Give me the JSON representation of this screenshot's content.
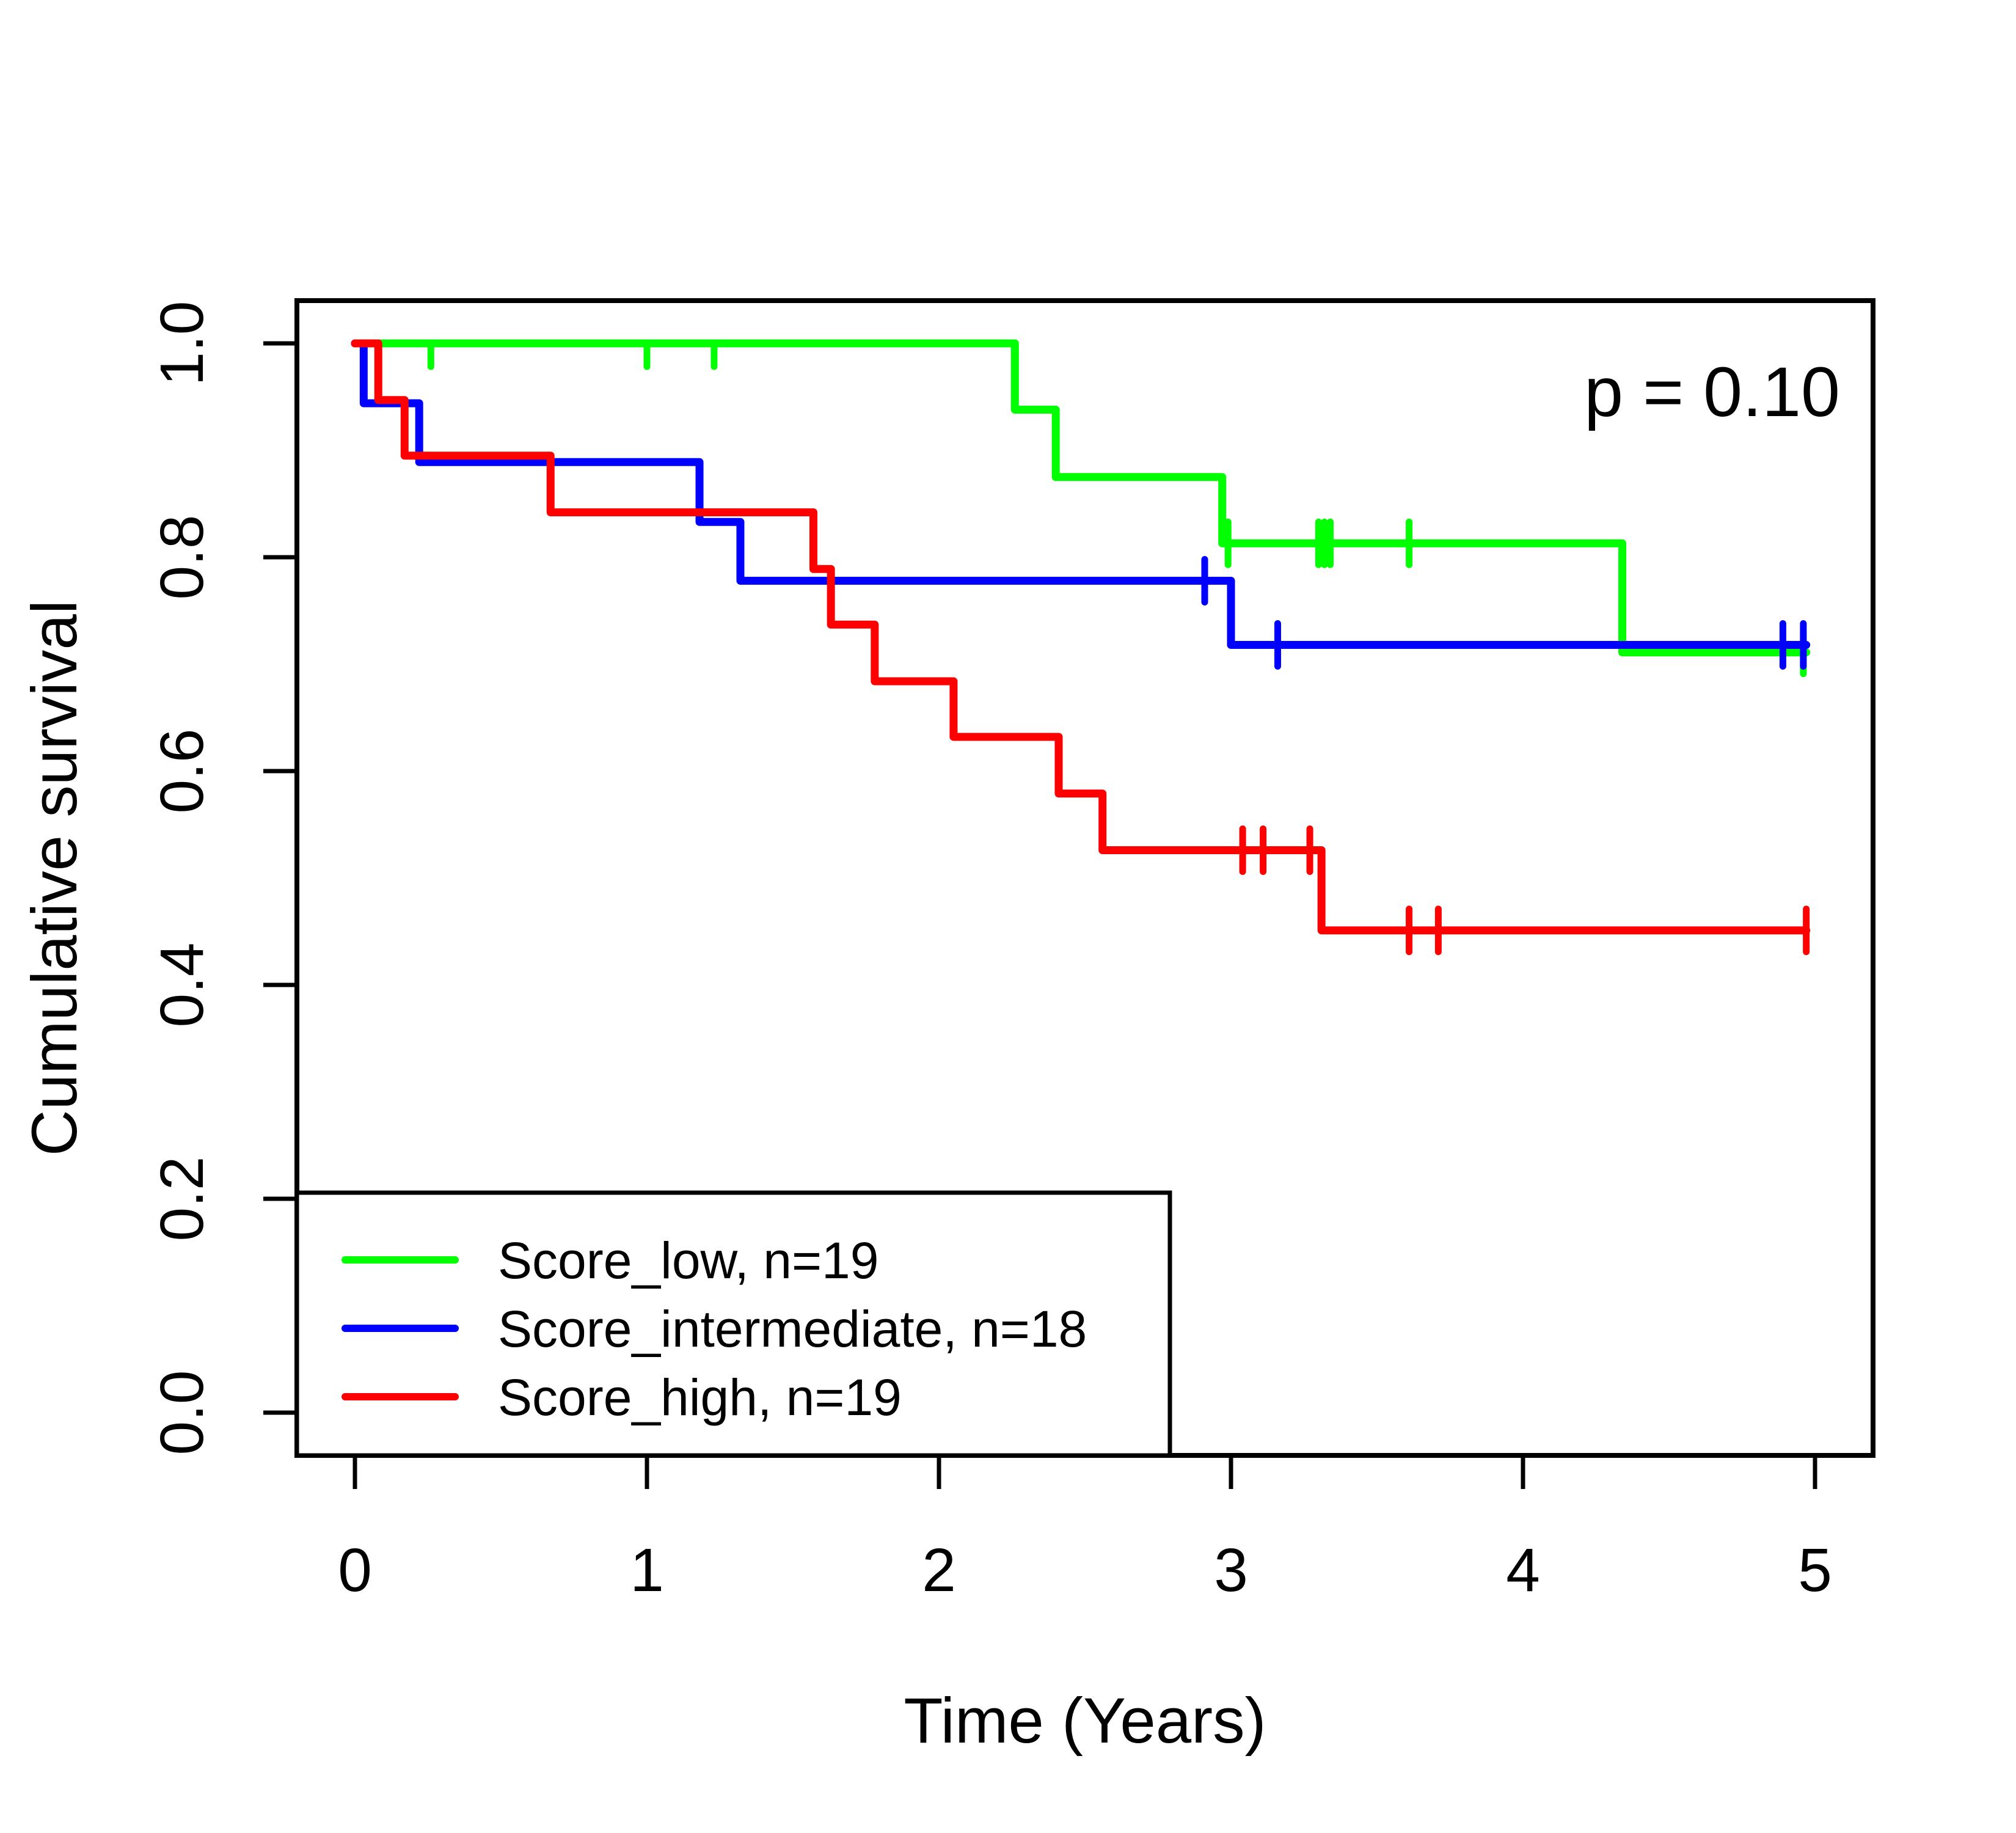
{
  "figure": {
    "background_color": "#ffffff",
    "foreground_color": "#000000"
  },
  "chart_data": {
    "type": "line",
    "subtype": "kaplan-meier-step",
    "title": "",
    "xlabel": "Time (Years)",
    "ylabel": "Cumulative survival",
    "xlim": [
      0,
      5
    ],
    "ylim": [
      0.0,
      1.0
    ],
    "grid": false,
    "xticks": {
      "values": [
        0,
        1,
        2,
        3,
        4,
        5
      ],
      "labels": [
        "0",
        "1",
        "2",
        "3",
        "4",
        "5"
      ]
    },
    "yticks": {
      "values": [
        0.0,
        0.2,
        0.4,
        0.6,
        0.8,
        1.0
      ],
      "labels": [
        "0.0",
        "0.2",
        "0.4",
        "0.6",
        "0.8",
        "1.0"
      ]
    },
    "annotation": {
      "text": "p = 0.10",
      "position": "top-right"
    },
    "legend": {
      "position": "bottom-left",
      "entries": [
        {
          "label": "Score_low, n=19",
          "color": "#00ff00"
        },
        {
          "label": "Score_intermediate, n=18",
          "color": "#0000ff"
        },
        {
          "label": "Score_high, n=19",
          "color": "#ff0000"
        }
      ]
    },
    "series": [
      {
        "name": "Score_low",
        "n": 19,
        "color": "#00ff00",
        "end_time": 4.97,
        "steps": [
          [
            0,
            1.0
          ],
          [
            2.26,
            0.938
          ],
          [
            2.4,
            0.875
          ],
          [
            2.97,
            0.813
          ],
          [
            4.34,
            0.711
          ]
        ],
        "censors": [
          {
            "t": 0.26,
            "s": 1.0,
            "half": true
          },
          {
            "t": 1.0,
            "s": 1.0,
            "half": true
          },
          {
            "t": 1.23,
            "s": 1.0,
            "half": true
          },
          {
            "t": 2.99,
            "s": 0.813
          },
          {
            "t": 3.3,
            "s": 0.813
          },
          {
            "t": 3.32,
            "s": 0.813
          },
          {
            "t": 3.34,
            "s": 0.813
          },
          {
            "t": 3.61,
            "s": 0.813
          },
          {
            "t": 4.96,
            "s": 0.711
          }
        ]
      },
      {
        "name": "Score_intermediate",
        "n": 18,
        "color": "#0000ff",
        "end_time": 4.97,
        "steps": [
          [
            0,
            1.0
          ],
          [
            0.03,
            0.944
          ],
          [
            0.22,
            0.889
          ],
          [
            1.18,
            0.833
          ],
          [
            1.32,
            0.778
          ],
          [
            3.0,
            0.718
          ]
        ],
        "censors": [
          {
            "t": 2.91,
            "s": 0.778
          },
          {
            "t": 3.16,
            "s": 0.718
          },
          {
            "t": 4.89,
            "s": 0.718
          },
          {
            "t": 4.96,
            "s": 0.718
          }
        ]
      },
      {
        "name": "Score_high",
        "n": 19,
        "color": "#ff0000",
        "end_time": 4.97,
        "steps": [
          [
            0,
            1.0
          ],
          [
            0.08,
            0.947
          ],
          [
            0.17,
            0.895
          ],
          [
            0.67,
            0.842
          ],
          [
            1.57,
            0.789
          ],
          [
            1.63,
            0.737
          ],
          [
            1.78,
            0.684
          ],
          [
            2.05,
            0.632
          ],
          [
            2.41,
            0.579
          ],
          [
            2.56,
            0.526
          ],
          [
            3.31,
            0.451
          ]
        ],
        "censors": [
          {
            "t": 3.04,
            "s": 0.526
          },
          {
            "t": 3.11,
            "s": 0.526
          },
          {
            "t": 3.27,
            "s": 0.526
          },
          {
            "t": 3.61,
            "s": 0.451
          },
          {
            "t": 3.71,
            "s": 0.451
          },
          {
            "t": 4.97,
            "s": 0.451
          }
        ]
      }
    ]
  }
}
